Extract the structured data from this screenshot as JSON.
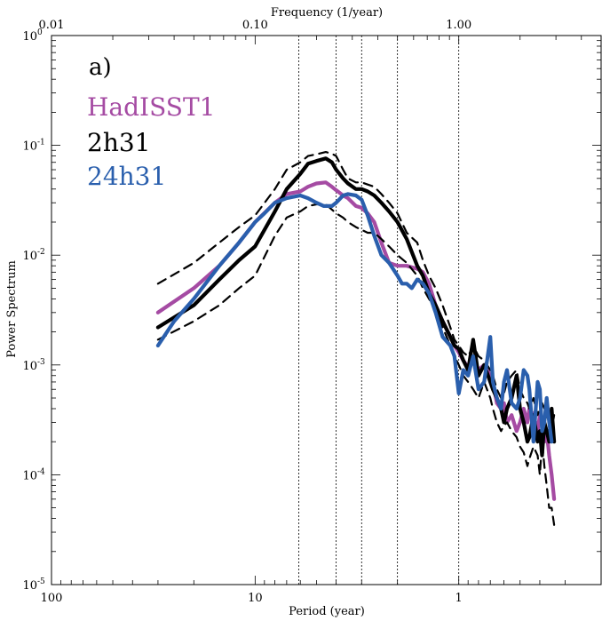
{
  "chart_data": {
    "type": "line",
    "panel_label": "a)",
    "xlabel": "Period (year)",
    "ylabel": "Power Spectrum",
    "top_axis_label": "Frequency (1/year)",
    "x_scale": "log-reversed",
    "y_scale": "log",
    "xlim": [
      100,
      0.2
    ],
    "ylim": [
      1e-05,
      1
    ],
    "x_ticks": [
      {
        "value": 100,
        "label": "100"
      },
      {
        "value": 10,
        "label": "10"
      },
      {
        "value": 1,
        "label": "1"
      }
    ],
    "top_ticks": [
      {
        "value": 0.01,
        "label": "0.01"
      },
      {
        "value": 0.1,
        "label": "0.10"
      },
      {
        "value": 1.0,
        "label": "1.00"
      }
    ],
    "y_ticks": [
      {
        "value": 1,
        "base": "10",
        "exp": "0"
      },
      {
        "value": 0.1,
        "base": "10",
        "exp": "-1"
      },
      {
        "value": 0.01,
        "base": "10",
        "exp": "-2"
      },
      {
        "value": 0.001,
        "base": "10",
        "exp": "-3"
      },
      {
        "value": 0.0001,
        "base": "10",
        "exp": "-4"
      },
      {
        "value": 1e-05,
        "base": "10",
        "exp": "-5"
      }
    ],
    "reference_periods": [
      6.1,
      4.0,
      3.0,
      2.0,
      1.0
    ],
    "series": [
      {
        "name": "HadISST1",
        "color": "#a54ba3",
        "style": "solid",
        "x": [
          30,
          20,
          15,
          12,
          10,
          8,
          7,
          6,
          5.5,
          5,
          4.5,
          4.2,
          4,
          3.7,
          3.5,
          3.2,
          3,
          2.8,
          2.6,
          2.4,
          2.2,
          2,
          1.9,
          1.8,
          1.6,
          1.5,
          1.4,
          1.3,
          1.2,
          1.1,
          1.05,
          1,
          0.95,
          0.9,
          0.85,
          0.8,
          0.75,
          0.7,
          0.68,
          0.65,
          0.62,
          0.6,
          0.58,
          0.55,
          0.52,
          0.5,
          0.48,
          0.46,
          0.45,
          0.43,
          0.41,
          0.4,
          0.39,
          0.38,
          0.37,
          0.36,
          0.35,
          0.34
        ],
        "y": [
          0.003,
          0.005,
          0.008,
          0.013,
          0.02,
          0.03,
          0.036,
          0.038,
          0.042,
          0.045,
          0.046,
          0.042,
          0.039,
          0.035,
          0.033,
          0.028,
          0.027,
          0.024,
          0.02,
          0.013,
          0.0085,
          0.008,
          0.008,
          0.008,
          0.0075,
          0.007,
          0.0055,
          0.0035,
          0.0025,
          0.0018,
          0.0015,
          0.0013,
          0.0011,
          0.00095,
          0.0012,
          0.0009,
          0.001,
          0.0008,
          0.0007,
          0.00045,
          0.0004,
          0.00045,
          0.0003,
          0.00035,
          0.00025,
          0.0003,
          0.0004,
          0.0003,
          0.0004,
          0.00035,
          0.00025,
          0.00035,
          0.0003,
          0.0002,
          0.00025,
          0.00015,
          0.0001,
          6e-05
        ]
      },
      {
        "name": "2h31",
        "color": "#000000",
        "style": "solid",
        "x": [
          30,
          20,
          15,
          12,
          10,
          8,
          7,
          6,
          5.5,
          5,
          4.5,
          4.2,
          4,
          3.7,
          3.5,
          3.2,
          3,
          2.8,
          2.6,
          2.4,
          2.2,
          2,
          1.8,
          1.6,
          1.5,
          1.4,
          1.3,
          1.2,
          1.1,
          1.05,
          1,
          0.95,
          0.9,
          0.85,
          0.8,
          0.75,
          0.7,
          0.68,
          0.65,
          0.62,
          0.6,
          0.58,
          0.55,
          0.52,
          0.5,
          0.48,
          0.46,
          0.45,
          0.43,
          0.41,
          0.4,
          0.39,
          0.38,
          0.37,
          0.36,
          0.35,
          0.34
        ],
        "y": [
          0.0022,
          0.0035,
          0.006,
          0.009,
          0.012,
          0.025,
          0.04,
          0.055,
          0.068,
          0.072,
          0.076,
          0.07,
          0.06,
          0.05,
          0.045,
          0.04,
          0.04,
          0.038,
          0.035,
          0.03,
          0.025,
          0.02,
          0.014,
          0.008,
          0.0065,
          0.0045,
          0.0035,
          0.0025,
          0.0018,
          0.0015,
          0.0014,
          0.0011,
          0.0009,
          0.0017,
          0.0008,
          0.001,
          0.0007,
          0.0006,
          0.0005,
          0.0004,
          0.0003,
          0.0004,
          0.0005,
          0.0008,
          0.0004,
          0.0003,
          0.0002,
          0.00022,
          0.00035,
          0.0002,
          0.00025,
          0.00015,
          0.0003,
          0.00025,
          0.0002,
          0.0004,
          0.0002
        ]
      },
      {
        "name": "2h31 bound (upper)",
        "color": "#000000",
        "style": "dashed",
        "x": [
          30,
          20,
          15,
          12,
          10,
          8,
          7,
          6,
          5.5,
          5,
          4.5,
          4.2,
          4,
          3.7,
          3.5,
          3.2,
          3,
          2.8,
          2.6,
          2.4,
          2.2,
          2,
          1.8,
          1.6,
          1.5,
          1.4,
          1.3,
          1.2,
          1.1,
          1.05,
          1,
          0.95,
          0.9,
          0.85,
          0.8,
          0.75,
          0.7,
          0.68,
          0.65,
          0.62,
          0.6,
          0.58,
          0.55,
          0.52,
          0.5,
          0.48,
          0.46,
          0.45,
          0.43,
          0.41,
          0.4,
          0.39,
          0.38,
          0.37,
          0.36,
          0.35,
          0.34
        ],
        "y": [
          0.0055,
          0.0085,
          0.013,
          0.018,
          0.023,
          0.04,
          0.06,
          0.07,
          0.08,
          0.083,
          0.087,
          0.084,
          0.08,
          0.06,
          0.05,
          0.046,
          0.046,
          0.044,
          0.042,
          0.036,
          0.03,
          0.024,
          0.016,
          0.013,
          0.009,
          0.0065,
          0.005,
          0.0035,
          0.0022,
          0.0017,
          0.0015,
          0.0013,
          0.0012,
          0.0015,
          0.0012,
          0.0011,
          0.0009,
          0.0008,
          0.0006,
          0.0005,
          0.00055,
          0.0007,
          0.0008,
          0.0009,
          0.0006,
          0.0005,
          0.00045,
          0.0004,
          0.0005,
          0.00035,
          0.0004,
          0.00045,
          0.0004,
          0.00035,
          0.0003,
          0.00025,
          0.00035
        ]
      },
      {
        "name": "2h31 bound (lower)",
        "color": "#000000",
        "style": "dashed",
        "x": [
          30,
          20,
          15,
          12,
          10,
          8,
          7,
          6,
          5.5,
          5,
          4.5,
          4.2,
          4,
          3.7,
          3.5,
          3.2,
          3,
          2.8,
          2.6,
          2.4,
          2.2,
          2,
          1.8,
          1.6,
          1.5,
          1.4,
          1.3,
          1.2,
          1.1,
          1.05,
          1,
          0.95,
          0.9,
          0.85,
          0.8,
          0.75,
          0.7,
          0.68,
          0.65,
          0.62,
          0.6,
          0.58,
          0.55,
          0.52,
          0.5,
          0.48,
          0.46,
          0.45,
          0.43,
          0.41,
          0.4,
          0.39,
          0.38,
          0.37,
          0.36,
          0.35,
          0.34
        ],
        "y": [
          0.0017,
          0.0025,
          0.0035,
          0.005,
          0.0065,
          0.015,
          0.022,
          0.025,
          0.028,
          0.029,
          0.029,
          0.026,
          0.024,
          0.022,
          0.02,
          0.018,
          0.017,
          0.016,
          0.016,
          0.014,
          0.012,
          0.01,
          0.0085,
          0.0065,
          0.005,
          0.004,
          0.0032,
          0.0022,
          0.0015,
          0.0012,
          0.001,
          0.0008,
          0.0007,
          0.0006,
          0.0005,
          0.0007,
          0.0005,
          0.0004,
          0.0003,
          0.00025,
          0.00028,
          0.0003,
          0.00025,
          0.00022,
          0.00018,
          0.00016,
          0.00012,
          0.00014,
          0.00018,
          0.00015,
          0.0001,
          0.0002,
          0.00012,
          8e-05,
          5e-05,
          5e-05,
          3.5e-05
        ]
      },
      {
        "name": "24h31",
        "color": "#2a5fad",
        "style": "solid",
        "x": [
          30,
          25,
          20,
          15,
          12,
          10,
          9,
          8,
          7,
          6,
          5.5,
          5,
          4.6,
          4.2,
          4,
          3.7,
          3.5,
          3.2,
          3,
          2.8,
          2.6,
          2.4,
          2.2,
          2,
          1.9,
          1.8,
          1.7,
          1.6,
          1.5,
          1.4,
          1.3,
          1.2,
          1.1,
          1.05,
          1,
          0.95,
          0.9,
          0.85,
          0.8,
          0.75,
          0.7,
          0.68,
          0.65,
          0.62,
          0.6,
          0.58,
          0.55,
          0.52,
          0.5,
          0.48,
          0.46,
          0.45,
          0.43,
          0.41,
          0.4,
          0.39,
          0.38,
          0.37,
          0.36,
          0.35
        ],
        "y": [
          0.0015,
          0.0025,
          0.004,
          0.008,
          0.013,
          0.02,
          0.024,
          0.03,
          0.033,
          0.035,
          0.033,
          0.03,
          0.028,
          0.028,
          0.03,
          0.035,
          0.036,
          0.035,
          0.032,
          0.023,
          0.015,
          0.01,
          0.0085,
          0.0065,
          0.0055,
          0.0055,
          0.005,
          0.006,
          0.0055,
          0.0045,
          0.003,
          0.0018,
          0.0015,
          0.0012,
          0.00055,
          0.0009,
          0.0008,
          0.0012,
          0.0006,
          0.0007,
          0.0018,
          0.0007,
          0.0005,
          0.0004,
          0.0007,
          0.0009,
          0.00045,
          0.0004,
          0.0005,
          0.0009,
          0.0008,
          0.0006,
          0.0002,
          0.0007,
          0.0006,
          0.00025,
          0.0003,
          0.0005,
          0.0003,
          0.0002
        ]
      }
    ]
  }
}
